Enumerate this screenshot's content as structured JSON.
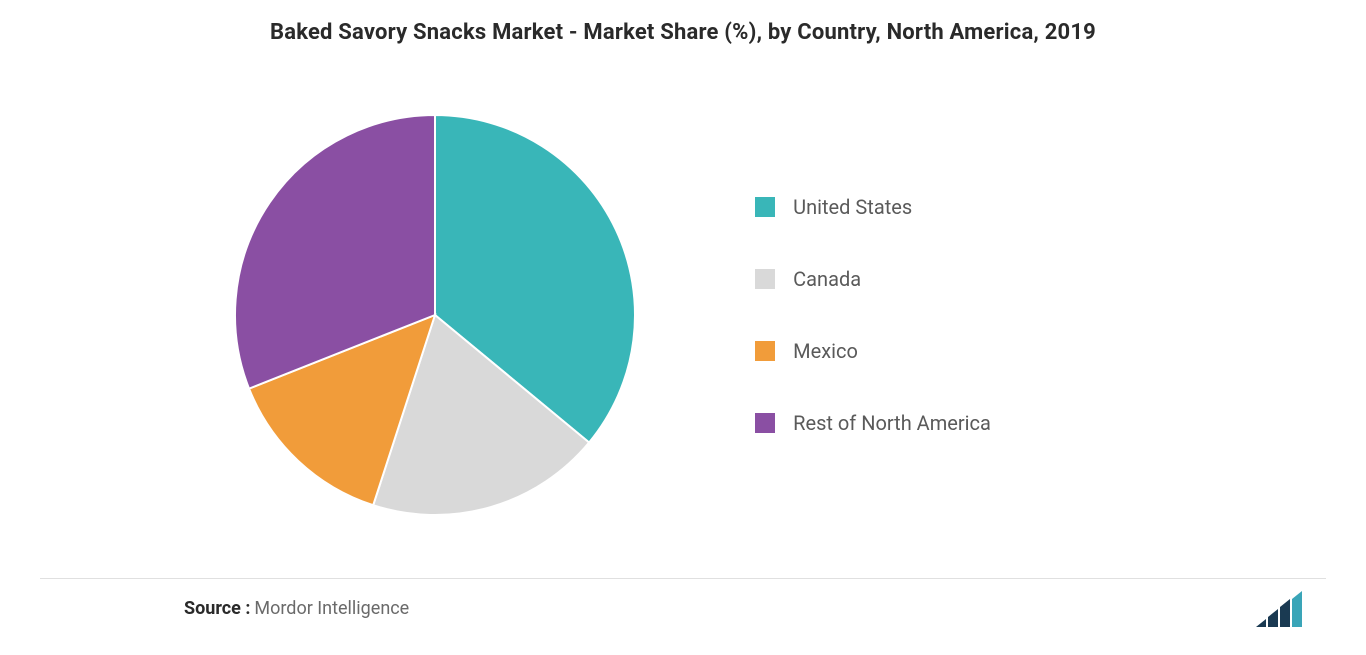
{
  "chart": {
    "type": "pie",
    "title": "Baked Savory Snacks Market - Market Share (%), by Country, North America, 2019",
    "title_fontsize": 22,
    "title_color": "#2a2a2a",
    "background_color": "#ffffff",
    "radius": 200,
    "slices": [
      {
        "label": "United States",
        "value": 36,
        "color": "#39b6b8"
      },
      {
        "label": "Canada",
        "value": 19,
        "color": "#d9d9d9"
      },
      {
        "label": "Mexico",
        "value": 14,
        "color": "#f19c3a"
      },
      {
        "label": "Rest of North America",
        "value": 31,
        "color": "#8a4fa3"
      }
    ],
    "start_angle_deg": -90,
    "stroke_color": "#ffffff",
    "stroke_width": 2
  },
  "legend": {
    "position": "right",
    "swatch_size": 20,
    "label_fontsize": 20,
    "label_color": "#5a5a5a",
    "items": [
      {
        "label": "United States",
        "color": "#39b6b8"
      },
      {
        "label": "Canada",
        "color": "#d9d9d9"
      },
      {
        "label": "Mexico",
        "color": "#f19c3a"
      },
      {
        "label": "Rest of North America",
        "color": "#8a4fa3"
      }
    ]
  },
  "footer": {
    "source_label": "Source :",
    "source_value": "Mordor Intelligence",
    "label_color": "#2a2a2a",
    "value_color": "#6a6a6a",
    "fontsize": 18
  },
  "logo": {
    "name": "mordor-logo",
    "bar_color_1": "#1a3a52",
    "bar_color_2": "#3aa5b8"
  }
}
